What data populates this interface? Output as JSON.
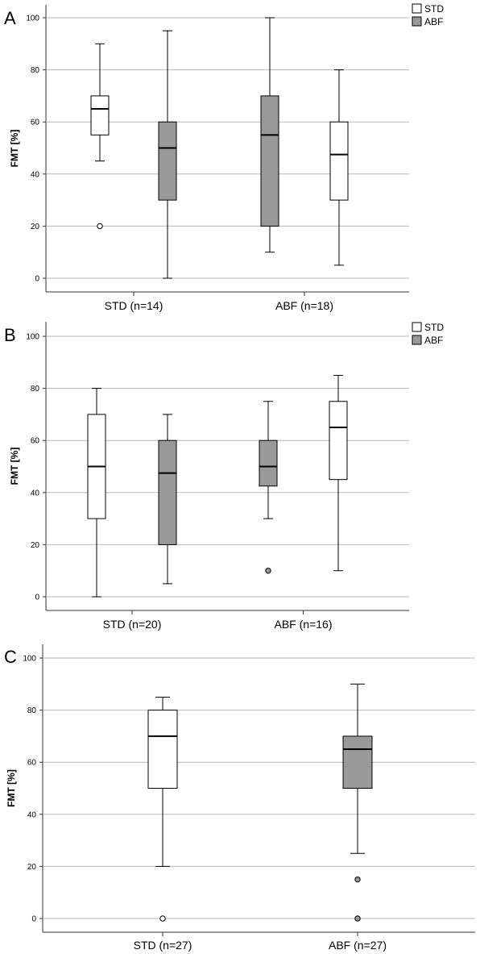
{
  "colors": {
    "STD": "#ffffff",
    "ABF": "#999999",
    "grid": "#b8b8b8",
    "axis": "#333333"
  },
  "chart_data": [
    {
      "type": "boxplot",
      "panel": "A",
      "ylabel": "FMT [%]",
      "ylim": [
        0,
        100
      ],
      "yticks": [
        0,
        20,
        40,
        60,
        80,
        100
      ],
      "grid": true,
      "legend": {
        "placement": "top-right",
        "entries": [
          {
            "label": "STD",
            "color": "STD"
          },
          {
            "label": "ABF",
            "color": "ABF"
          }
        ]
      },
      "groups": [
        {
          "label": "STD (n=14)",
          "boxes": [
            {
              "series": "STD",
              "min": 45,
              "q1": 55,
              "median": 65,
              "q3": 70,
              "max": 90,
              "outliers": [
                20
              ]
            },
            {
              "series": "ABF",
              "min": 0,
              "q1": 30,
              "median": 50,
              "q3": 60,
              "max": 95,
              "outliers": []
            }
          ]
        },
        {
          "label": "ABF (n=18)",
          "boxes": [
            {
              "series": "ABF",
              "min": 10,
              "q1": 20,
              "median": 55,
              "q3": 70,
              "max": 100,
              "outliers": []
            },
            {
              "series": "STD",
              "min": 5,
              "q1": 30,
              "median": 47.5,
              "q3": 60,
              "max": 80,
              "outliers": []
            }
          ]
        }
      ]
    },
    {
      "type": "boxplot",
      "panel": "B",
      "ylabel": "FMT [%]",
      "ylim": [
        0,
        100
      ],
      "yticks": [
        0,
        20,
        40,
        60,
        80,
        100
      ],
      "grid": true,
      "legend": {
        "placement": "top-right",
        "entries": [
          {
            "label": "STD",
            "color": "STD"
          },
          {
            "label": "ABF",
            "color": "ABF"
          }
        ]
      },
      "groups": [
        {
          "label": "STD (n=20)",
          "boxes": [
            {
              "series": "STD",
              "min": 0,
              "q1": 30,
              "median": 50,
              "q3": 70,
              "max": 80,
              "outliers": []
            },
            {
              "series": "ABF",
              "min": 5,
              "q1": 20,
              "median": 47.5,
              "q3": 60,
              "max": 70,
              "outliers": []
            }
          ]
        },
        {
          "label": "ABF (n=16)",
          "boxes": [
            {
              "series": "ABF",
              "min": 30,
              "q1": 42.5,
              "median": 50,
              "q3": 60,
              "max": 75,
              "outliers": [
                10
              ]
            },
            {
              "series": "STD",
              "min": 10,
              "q1": 45,
              "median": 65,
              "q3": 75,
              "max": 85,
              "outliers": []
            }
          ]
        }
      ]
    },
    {
      "type": "boxplot",
      "panel": "C",
      "ylabel": "FMT [%]",
      "ylim": [
        0,
        100
      ],
      "yticks": [
        0,
        20,
        40,
        60,
        80,
        100
      ],
      "grid": true,
      "legend": null,
      "groups": [
        {
          "label": "STD (n=27)",
          "boxes": [
            {
              "series": "STD",
              "min": 20,
              "q1": 50,
              "median": 70,
              "q3": 80,
              "max": 85,
              "outliers": [
                0
              ]
            }
          ]
        },
        {
          "label": "ABF (n=27)",
          "boxes": [
            {
              "series": "ABF",
              "min": 25,
              "q1": 50,
              "median": 65,
              "q3": 70,
              "max": 90,
              "outliers": [
                15,
                0
              ]
            }
          ]
        }
      ]
    }
  ]
}
